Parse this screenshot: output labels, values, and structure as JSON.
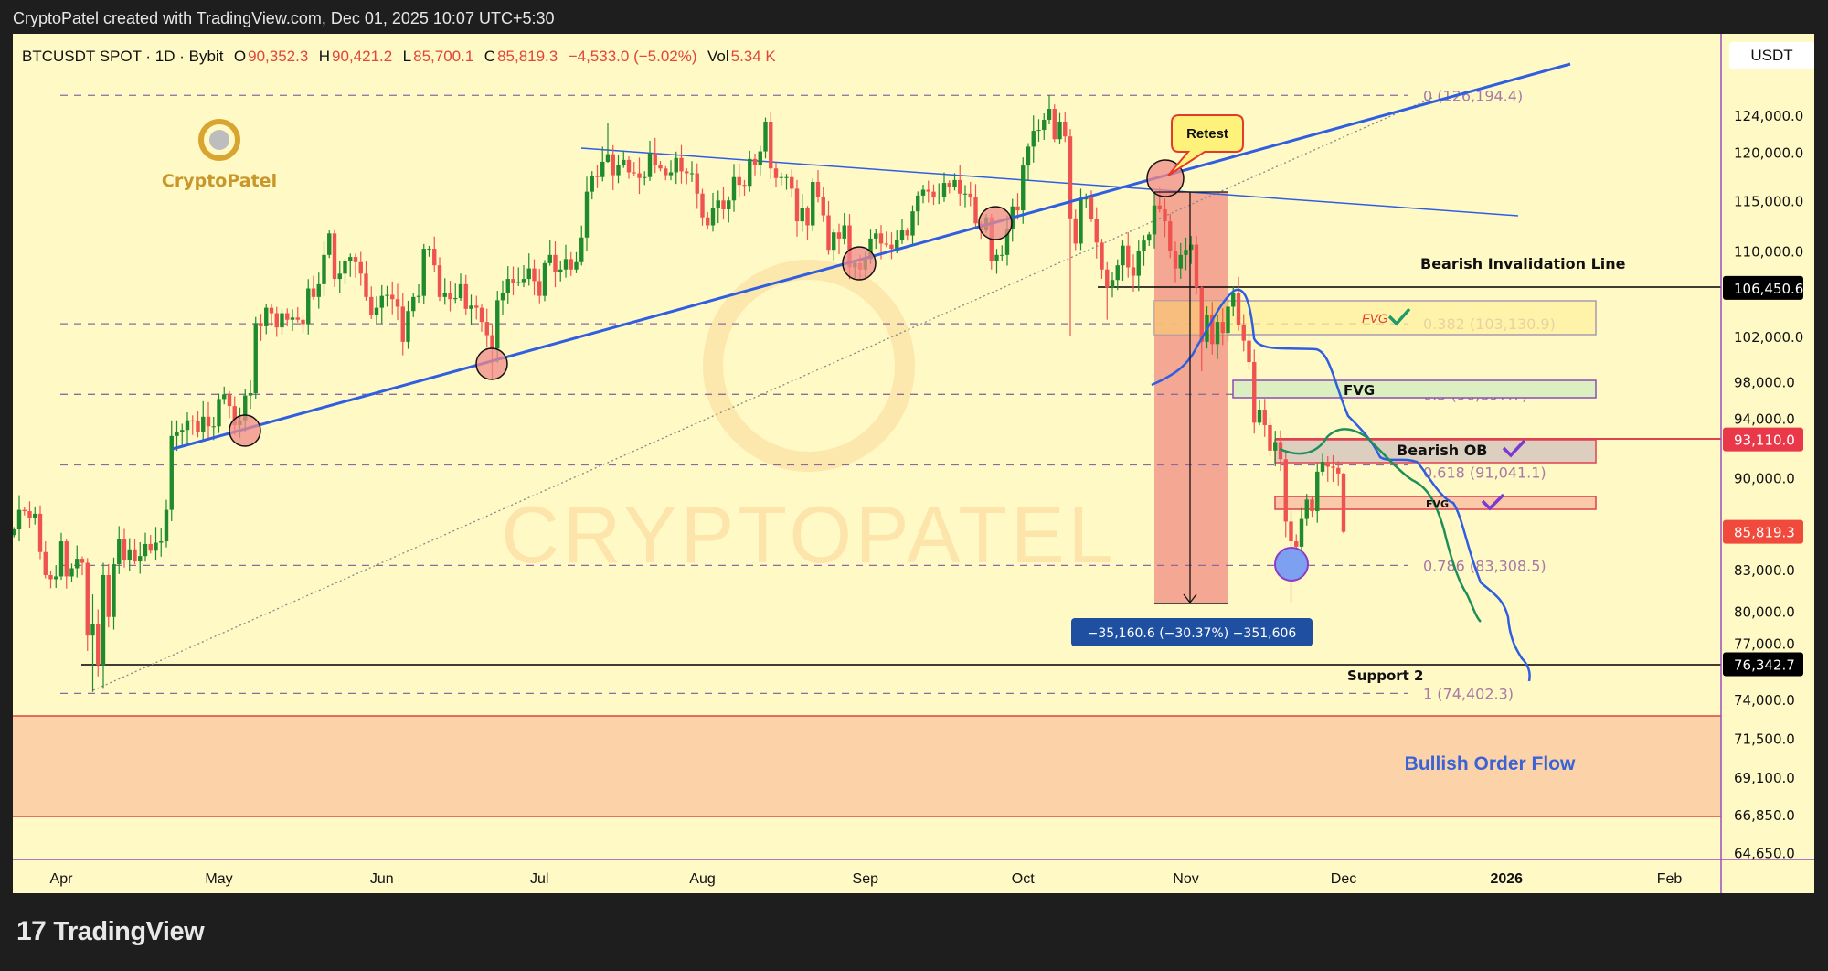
{
  "window": {
    "title": "CryptoPatel created with TradingView.com, Dec 01, 2025 10:07 UTC+5:30"
  },
  "legend": {
    "symbol": "BTCUSDT SPOT · 1D · Bybit",
    "open_label": "O",
    "open": "90,352.3",
    "high_label": "H",
    "high": "90,421.2",
    "low_label": "L",
    "low": "85,700.1",
    "close_label": "C",
    "close": "85,819.3",
    "change": "−4,533.0 (−5.02%)",
    "vol_label": "Vol",
    "vol": "5.34 K"
  },
  "currency_button": "USDT",
  "footer": {
    "brand": "TradingView",
    "logo_mark": "17"
  },
  "logo": {
    "text": "CryptoPatel",
    "watermark": "CRYPTOPATEL"
  },
  "colors": {
    "up": "#1f8b2c",
    "down": "#ef5350",
    "background": "#fff9c6",
    "trendline": "#2f5fe0",
    "fib": "#a77aa6"
  },
  "annotations": {
    "retest": "Retest",
    "bearish_invalidation": "Bearish Invalidation Line",
    "support": "Support 2",
    "bullish_order_flow": "Bullish Order Flow",
    "fvg_top": "FVG",
    "fvg_mid": "FVG",
    "bearish_ob": "Bearish OB",
    "fvg_low": "FVG",
    "measure": "−35,160.6 (−30.37%) −351,606"
  },
  "chart_data": {
    "type": "candlestick",
    "scale": "log",
    "symbol": "BTCUSDT",
    "interval": "1D",
    "price_ticks": [
      "124,000.0",
      "120,000.0",
      "115,000.0",
      "110,000.0",
      "102,000.0",
      "98,000.0",
      "94,000.0",
      "90,000.0",
      "83,000.0",
      "80,000.0",
      "77,000.0",
      "74,000.0",
      "71,500.0",
      "69,100.0",
      "66,850.0",
      "64,650.0"
    ],
    "price_tick_values": [
      124000,
      120000,
      115000,
      110000,
      102000,
      98000,
      94000,
      90000,
      83000,
      80000,
      77000,
      74000,
      71500,
      69100,
      66850,
      64650
    ],
    "price_labels": [
      {
        "text": "106,450.6",
        "value": 106450.6,
        "color": "#000000"
      },
      {
        "text": "93,110.0",
        "value": 93110,
        "color": "#e8384a"
      },
      {
        "text": "85,819.3",
        "value": 85819.3,
        "color": "#f04a3c"
      },
      {
        "text": "76,342.7",
        "value": 76342.7,
        "color": "#000000"
      }
    ],
    "time_ticks": [
      {
        "label": "Apr",
        "date": "2025-04-01",
        "bold": false
      },
      {
        "label": "May",
        "date": "2025-05-01",
        "bold": false
      },
      {
        "label": "Jun",
        "date": "2025-06-01",
        "bold": false
      },
      {
        "label": "Jul",
        "date": "2025-07-01",
        "bold": false
      },
      {
        "label": "Aug",
        "date": "2025-08-01",
        "bold": false
      },
      {
        "label": "Sep",
        "date": "2025-09-01",
        "bold": false
      },
      {
        "label": "Oct",
        "date": "2025-10-01",
        "bold": false
      },
      {
        "label": "Nov",
        "date": "2025-11-01",
        "bold": false
      },
      {
        "label": "Dec",
        "date": "2025-12-01",
        "bold": false
      },
      {
        "label": "2026",
        "date": "2026-01-01",
        "bold": true
      },
      {
        "label": "Feb",
        "date": "2026-02-01",
        "bold": false
      }
    ],
    "fib_levels": [
      {
        "label": "0 (126,194.4)",
        "value": 126194.4
      },
      {
        "label": "0.382 (103,130.9)",
        "value": 103130.9
      },
      {
        "label": "0.5 (96,897.7)",
        "value": 96897.7
      },
      {
        "label": "0.618 (91,041.1)",
        "value": 91041.1
      },
      {
        "label": "0.786 (83,308.5)",
        "value": 83308.5
      },
      {
        "label": "1 (74,402.3)",
        "value": 74402.3
      }
    ],
    "candles_date_close_high_low": [
      [
        "2025-03-23",
        86000
      ],
      [
        "2025-03-24",
        87500
      ],
      [
        "2025-03-25",
        87400
      ],
      [
        "2025-03-26",
        86900
      ],
      [
        "2025-03-27",
        87200
      ],
      [
        "2025-03-28",
        84300
      ],
      [
        "2025-03-29",
        82600
      ],
      [
        "2025-03-30",
        82300
      ],
      [
        "2025-03-31",
        82500
      ],
      [
        "2025-04-01",
        85100
      ],
      [
        "2025-04-02",
        82500
      ],
      [
        "2025-04-03",
        83100
      ],
      [
        "2025-04-04",
        83800
      ],
      [
        "2025-04-05",
        83500
      ],
      [
        "2025-04-06",
        78300
      ],
      [
        "2025-04-07",
        79100,
        81200,
        74500
      ],
      [
        "2025-04-08",
        76300
      ],
      [
        "2025-04-09",
        82600,
        83500,
        74700
      ],
      [
        "2025-04-10",
        79600
      ],
      [
        "2025-04-11",
        83400
      ],
      [
        "2025-04-12",
        85300
      ],
      [
        "2025-04-13",
        83700
      ],
      [
        "2025-04-14",
        84500
      ],
      [
        "2025-04-15",
        83600
      ],
      [
        "2025-04-16",
        84000
      ],
      [
        "2025-04-17",
        84900
      ],
      [
        "2025-04-18",
        84400
      ],
      [
        "2025-04-19",
        85000
      ],
      [
        "2025-04-20",
        85100
      ],
      [
        "2025-04-21",
        87500
      ],
      [
        "2025-04-22",
        93400
      ],
      [
        "2025-04-23",
        93700
      ],
      [
        "2025-04-24",
        93900
      ],
      [
        "2025-04-25",
        94700
      ],
      [
        "2025-04-26",
        94600
      ],
      [
        "2025-04-27",
        93700
      ],
      [
        "2025-04-28",
        95000
      ],
      [
        "2025-04-29",
        94200
      ],
      [
        "2025-04-30",
        94200
      ],
      [
        "2025-05-01",
        96500
      ],
      [
        "2025-05-02",
        96900
      ],
      [
        "2025-05-03",
        95900
      ],
      [
        "2025-05-04",
        94300
      ],
      [
        "2025-05-05",
        94700
      ],
      [
        "2025-05-06",
        96800
      ],
      [
        "2025-05-07",
        97000
      ],
      [
        "2025-05-08",
        103200
      ],
      [
        "2025-05-09",
        102900
      ],
      [
        "2025-05-10",
        104600
      ],
      [
        "2025-05-11",
        104100
      ],
      [
        "2025-05-12",
        102800
      ],
      [
        "2025-05-13",
        104100
      ],
      [
        "2025-05-14",
        103500
      ],
      [
        "2025-05-15",
        103700
      ],
      [
        "2025-05-16",
        103500
      ],
      [
        "2025-05-17",
        103100
      ],
      [
        "2025-05-18",
        106400
      ],
      [
        "2025-05-19",
        105600
      ],
      [
        "2025-05-20",
        106800
      ],
      [
        "2025-05-21",
        109600
      ],
      [
        "2025-05-22",
        111700,
        112000,
        109300
      ],
      [
        "2025-05-23",
        107300
      ],
      [
        "2025-05-24",
        107800
      ],
      [
        "2025-05-25",
        109000
      ],
      [
        "2025-05-26",
        109400
      ],
      [
        "2025-05-27",
        108900
      ],
      [
        "2025-05-28",
        107800
      ],
      [
        "2025-05-29",
        105600
      ],
      [
        "2025-05-30",
        103900
      ],
      [
        "2025-05-31",
        104600
      ],
      [
        "2025-06-01",
        105700
      ],
      [
        "2025-06-02",
        105800
      ],
      [
        "2025-06-03",
        105400
      ],
      [
        "2025-06-04",
        104700
      ],
      [
        "2025-06-05",
        101500
      ],
      [
        "2025-06-06",
        104300
      ],
      [
        "2025-06-07",
        105600
      ],
      [
        "2025-06-08",
        105700
      ],
      [
        "2025-06-09",
        110200
      ],
      [
        "2025-06-10",
        110200
      ],
      [
        "2025-06-11",
        108600
      ],
      [
        "2025-06-12",
        105600
      ],
      [
        "2025-06-13",
        106000
      ],
      [
        "2025-06-14",
        105400
      ],
      [
        "2025-06-15",
        105500
      ],
      [
        "2025-06-16",
        106800
      ],
      [
        "2025-06-17",
        104500
      ],
      [
        "2025-06-18",
        104800
      ],
      [
        "2025-06-19",
        104600
      ],
      [
        "2025-06-20",
        103300
      ],
      [
        "2025-06-21",
        102100
      ],
      [
        "2025-06-22",
        100900,
        103000,
        98200
      ],
      [
        "2025-06-23",
        105300
      ],
      [
        "2025-06-24",
        106000
      ],
      [
        "2025-06-25",
        107300
      ],
      [
        "2025-06-26",
        106900
      ],
      [
        "2025-06-27",
        107000
      ],
      [
        "2025-06-28",
        107300
      ],
      [
        "2025-06-29",
        108300
      ],
      [
        "2025-06-30",
        107100
      ],
      [
        "2025-07-01",
        105700
      ],
      [
        "2025-07-02",
        108800
      ],
      [
        "2025-07-03",
        109600
      ],
      [
        "2025-07-04",
        108000
      ],
      [
        "2025-07-05",
        108200
      ],
      [
        "2025-07-06",
        109200
      ],
      [
        "2025-07-07",
        108200
      ],
      [
        "2025-07-08",
        108900
      ],
      [
        "2025-07-09",
        111300
      ],
      [
        "2025-07-10",
        115900
      ],
      [
        "2025-07-11",
        117500
      ],
      [
        "2025-07-12",
        117400
      ],
      [
        "2025-07-13",
        119000
      ],
      [
        "2025-07-14",
        119800,
        123200,
        118900
      ],
      [
        "2025-07-15",
        117600
      ],
      [
        "2025-07-16",
        118700
      ],
      [
        "2025-07-17",
        119200
      ],
      [
        "2025-07-18",
        117900
      ],
      [
        "2025-07-19",
        117800
      ],
      [
        "2025-07-20",
        117300
      ],
      [
        "2025-07-21",
        117400
      ],
      [
        "2025-07-22",
        119900
      ],
      [
        "2025-07-23",
        118700
      ],
      [
        "2025-07-24",
        118300
      ],
      [
        "2025-07-25",
        117600
      ],
      [
        "2025-07-26",
        117900
      ],
      [
        "2025-07-27",
        119400
      ],
      [
        "2025-07-28",
        118000
      ],
      [
        "2025-07-29",
        117800
      ],
      [
        "2025-07-30",
        117800
      ],
      [
        "2025-07-31",
        115700
      ],
      [
        "2025-08-01",
        113300
      ],
      [
        "2025-08-02",
        112500
      ],
      [
        "2025-08-03",
        114200
      ],
      [
        "2025-08-04",
        115000
      ],
      [
        "2025-08-05",
        114100
      ],
      [
        "2025-08-06",
        115000
      ],
      [
        "2025-08-07",
        117400
      ],
      [
        "2025-08-08",
        116600
      ],
      [
        "2025-08-09",
        116500
      ],
      [
        "2025-08-10",
        119300
      ],
      [
        "2025-08-11",
        118700
      ],
      [
        "2025-08-12",
        120100
      ],
      [
        "2025-08-13",
        123300
      ],
      [
        "2025-08-14",
        118300,
        124400,
        117200
      ],
      [
        "2025-08-15",
        117300
      ],
      [
        "2025-08-16",
        117400
      ],
      [
        "2025-08-17",
        117400
      ],
      [
        "2025-08-18",
        116200
      ],
      [
        "2025-08-19",
        112900
      ],
      [
        "2025-08-20",
        114200
      ],
      [
        "2025-08-21",
        112500
      ],
      [
        "2025-08-22",
        116900
      ],
      [
        "2025-08-23",
        115400
      ],
      [
        "2025-08-24",
        113500
      ],
      [
        "2025-08-25",
        110100
      ],
      [
        "2025-08-26",
        111800
      ],
      [
        "2025-08-27",
        111200
      ],
      [
        "2025-08-28",
        112500
      ],
      [
        "2025-08-29",
        108400
      ],
      [
        "2025-08-30",
        108800
      ],
      [
        "2025-08-31",
        108200
      ],
      [
        "2025-09-01",
        109200,
        109900,
        107300
      ],
      [
        "2025-09-02",
        111200
      ],
      [
        "2025-09-03",
        111700
      ],
      [
        "2025-09-04",
        110700
      ],
      [
        "2025-09-05",
        110600
      ],
      [
        "2025-09-06",
        110200
      ],
      [
        "2025-09-07",
        111100
      ],
      [
        "2025-09-08",
        112000
      ],
      [
        "2025-09-09",
        111500
      ],
      [
        "2025-09-10",
        113900
      ],
      [
        "2025-09-11",
        115500
      ],
      [
        "2025-09-12",
        116100
      ],
      [
        "2025-09-13",
        115900
      ],
      [
        "2025-09-14",
        115300
      ],
      [
        "2025-09-15",
        115400
      ],
      [
        "2025-09-16",
        116800
      ],
      [
        "2025-09-17",
        116400
      ],
      [
        "2025-09-18",
        117100
      ],
      [
        "2025-09-19",
        115700
      ],
      [
        "2025-09-20",
        115700
      ],
      [
        "2025-09-21",
        115300
      ],
      [
        "2025-09-22",
        112700
      ],
      [
        "2025-09-23",
        112000
      ],
      [
        "2025-09-24",
        113300
      ],
      [
        "2025-09-25",
        109000
      ],
      [
        "2025-09-26",
        109600
      ],
      [
        "2025-09-27",
        109600
      ],
      [
        "2025-09-28",
        112100
      ],
      [
        "2025-09-29",
        114400
      ],
      [
        "2025-09-30",
        114000
      ],
      [
        "2025-10-01",
        118600
      ],
      [
        "2025-10-02",
        120600
      ],
      [
        "2025-10-03",
        122300
      ],
      [
        "2025-10-04",
        122400
      ],
      [
        "2025-10-05",
        123500
      ],
      [
        "2025-10-06",
        124700,
        126200,
        123000
      ],
      [
        "2025-10-07",
        121400
      ],
      [
        "2025-10-08",
        123300
      ],
      [
        "2025-10-09",
        121700
      ],
      [
        "2025-10-10",
        113200,
        122500,
        102000
      ],
      [
        "2025-10-11",
        110700
      ],
      [
        "2025-10-12",
        115100
      ],
      [
        "2025-10-13",
        115300
      ],
      [
        "2025-10-14",
        113100
      ],
      [
        "2025-10-15",
        110800
      ],
      [
        "2025-10-16",
        108200
      ],
      [
        "2025-10-17",
        106500,
        108900,
        103500
      ],
      [
        "2025-10-18",
        107200
      ],
      [
        "2025-10-19",
        108600
      ],
      [
        "2025-10-20",
        110500
      ],
      [
        "2025-10-21",
        108400
      ],
      [
        "2025-10-22",
        107600
      ],
      [
        "2025-10-23",
        110000
      ],
      [
        "2025-10-24",
        111000
      ],
      [
        "2025-10-25",
        111600
      ],
      [
        "2025-10-26",
        114500
      ],
      [
        "2025-10-27",
        114100,
        116400,
        113800
      ],
      [
        "2025-10-28",
        112900
      ],
      [
        "2025-10-29",
        110000
      ],
      [
        "2025-10-30",
        108300
      ],
      [
        "2025-10-31",
        109600
      ],
      [
        "2025-11-01",
        110100
      ],
      [
        "2025-11-02",
        110600
      ],
      [
        "2025-11-03",
        106500
      ],
      [
        "2025-11-04",
        101500,
        106600,
        98900
      ],
      [
        "2025-11-05",
        103900
      ],
      [
        "2025-11-06",
        101300
      ],
      [
        "2025-11-07",
        103300
      ],
      [
        "2025-11-08",
        102300
      ],
      [
        "2025-11-09",
        104700
      ],
      [
        "2025-11-10",
        106000
      ],
      [
        "2025-11-11",
        103000,
        107500,
        102500
      ],
      [
        "2025-11-12",
        101600
      ],
      [
        "2025-11-13",
        99700
      ],
      [
        "2025-11-14",
        94500
      ],
      [
        "2025-11-15",
        95600
      ],
      [
        "2025-11-16",
        94300
      ],
      [
        "2025-11-17",
        92200
      ],
      [
        "2025-11-18",
        92900
      ],
      [
        "2025-11-19",
        91500
      ],
      [
        "2025-11-20",
        86600
      ],
      [
        "2025-11-21",
        85100,
        87400,
        80600
      ],
      [
        "2025-11-22",
        84700
      ],
      [
        "2025-11-23",
        86800
      ],
      [
        "2025-11-24",
        88300
      ],
      [
        "2025-11-25",
        87400
      ],
      [
        "2025-11-26",
        90500
      ],
      [
        "2025-11-27",
        91300
      ],
      [
        "2025-11-28",
        90900
      ],
      [
        "2025-11-29",
        90800
      ],
      [
        "2025-11-30",
        90352.3
      ],
      [
        "2025-12-01",
        85819.3,
        90421.2,
        85700.1
      ]
    ]
  }
}
